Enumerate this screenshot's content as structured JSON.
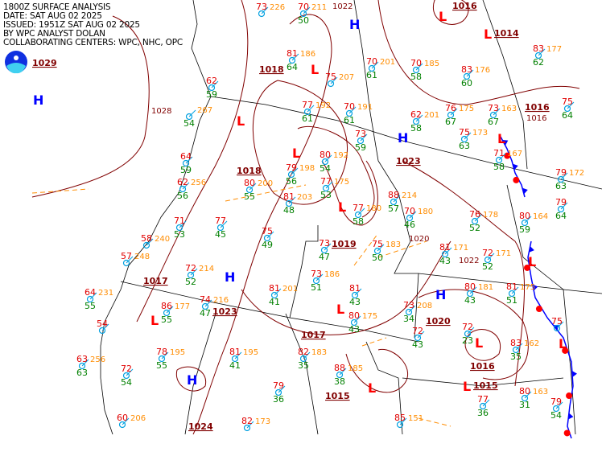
{
  "header": {
    "lines": [
      "1800Z SURFACE ANALYSIS",
      "DATE: SAT AUG 02 2025",
      "ISSUED: 1951Z SAT AUG 02 2025",
      "BY WPC ANALYST DOLAN",
      "COLLABORATING CENTERS: WPC, NHC, OPC"
    ]
  },
  "logo": {
    "text": "NOAA"
  },
  "colors": {
    "high": "#0000ff",
    "low": "#ff0000",
    "isobar": "#800000",
    "temp": "#e00000",
    "dewpoint": "#008000",
    "pressure": "#ff8c00",
    "cold_front": "#0000ff",
    "warm_front": "#ff0000",
    "trough": "#ff8c00",
    "border": "#000000"
  },
  "centers": [
    {
      "type": "H",
      "value": "1029"
    },
    {
      "type": "H",
      "value": ""
    },
    {
      "type": "L",
      "value": "1018"
    },
    {
      "type": "L",
      "value": "1018"
    },
    {
      "type": "L",
      "value": "1019"
    },
    {
      "type": "H",
      "value": "1023"
    },
    {
      "type": "H",
      "value": "1017"
    },
    {
      "type": "L",
      "value": "1023"
    },
    {
      "type": "H",
      "value": "1024"
    },
    {
      "type": "L",
      "value": "1017"
    },
    {
      "type": "L",
      "value": "1015"
    },
    {
      "type": "L",
      "value": "1016"
    },
    {
      "type": "H",
      "value": "1020"
    },
    {
      "type": "L",
      "value": "1016"
    },
    {
      "type": "L",
      "value": "1016"
    },
    {
      "type": "L",
      "value": "1014"
    },
    {
      "type": "L",
      "value": ""
    },
    {
      "type": "L",
      "value": ""
    },
    {
      "type": "L",
      "value": ""
    },
    {
      "type": "L",
      "value": "1015"
    }
  ],
  "isobar_labels": [
    "1028",
    "1022",
    "1016",
    "1022",
    "1020"
  ],
  "stations": [
    {
      "t": "73",
      "p": "226",
      "d": ""
    },
    {
      "t": "70",
      "p": "211",
      "d": "50"
    },
    {
      "t": "81",
      "p": "186",
      "d": "64"
    },
    {
      "t": "75",
      "p": "207",
      "d": ""
    },
    {
      "t": "70",
      "p": "201",
      "d": "61"
    },
    {
      "t": "70",
      "p": "185",
      "d": "58"
    },
    {
      "t": "83",
      "p": "176",
      "d": "60"
    },
    {
      "t": "83",
      "p": "177",
      "d": "62"
    },
    {
      "t": "77",
      "p": "192",
      "d": "61"
    },
    {
      "t": "70",
      "p": "191",
      "d": "61"
    },
    {
      "t": "62",
      "p": "201",
      "d": "58"
    },
    {
      "t": "76",
      "p": "175",
      "d": "67"
    },
    {
      "t": "73",
      "p": "163",
      "d": "67"
    },
    {
      "t": "75",
      "p": "",
      "d": "64"
    },
    {
      "t": "79",
      "p": "198",
      "d": "56"
    },
    {
      "t": "80",
      "p": "192",
      "d": "54"
    },
    {
      "t": "73",
      "p": "",
      "d": "59"
    },
    {
      "t": "75",
      "p": "173",
      "d": "63"
    },
    {
      "t": "71",
      "p": "167",
      "d": "58"
    },
    {
      "t": "79",
      "p": "172",
      "d": "63"
    },
    {
      "t": "80",
      "p": "200",
      "d": "55"
    },
    {
      "t": "77",
      "p": "175",
      "d": "53"
    },
    {
      "t": "81",
      "p": "203",
      "d": "48"
    },
    {
      "t": "77",
      "p": "180",
      "d": "58"
    },
    {
      "t": "88",
      "p": "214",
      "d": "57"
    },
    {
      "t": "76",
      "p": "178",
      "d": "52"
    },
    {
      "t": "80",
      "p": "164",
      "d": "59"
    },
    {
      "t": "79",
      "p": "",
      "d": "64"
    },
    {
      "t": "77",
      "p": "",
      "d": "45"
    },
    {
      "t": "75",
      "p": "",
      "d": "49"
    },
    {
      "t": "73",
      "p": "",
      "d": "47"
    },
    {
      "t": "75",
      "p": "183",
      "d": "50"
    },
    {
      "t": "70",
      "p": "180",
      "d": "46"
    },
    {
      "t": "81",
      "p": "171",
      "d": "43"
    },
    {
      "t": "72",
      "p": "171",
      "d": "52"
    },
    {
      "t": "72",
      "p": "214",
      "d": "52"
    },
    {
      "t": "73",
      "p": "186",
      "d": "51"
    },
    {
      "t": "81",
      "p": "201",
      "d": "41"
    },
    {
      "t": "81",
      "p": "",
      "d": "43"
    },
    {
      "t": "80",
      "p": "181",
      "d": "43"
    },
    {
      "t": "81",
      "p": "175",
      "d": "51"
    },
    {
      "t": "74",
      "p": "216",
      "d": "47"
    },
    {
      "t": "86",
      "p": "177",
      "d": "55"
    },
    {
      "t": "80",
      "p": "175",
      "d": "43"
    },
    {
      "t": "73",
      "p": "208",
      "d": "34"
    },
    {
      "t": "72",
      "p": "",
      "d": "23"
    },
    {
      "t": "83",
      "p": "162",
      "d": "35"
    },
    {
      "t": "75",
      "p": "",
      "d": ""
    },
    {
      "t": "72",
      "p": "",
      "d": "43"
    },
    {
      "t": "82",
      "p": "183",
      "d": "35"
    },
    {
      "t": "81",
      "p": "195",
      "d": "41"
    },
    {
      "t": "78",
      "p": "195",
      "d": "55"
    },
    {
      "t": "88",
      "p": "185",
      "d": "38"
    },
    {
      "t": "79",
      "p": "",
      "d": "36"
    },
    {
      "t": "80",
      "p": "163",
      "d": "31"
    },
    {
      "t": "77",
      "p": "",
      "d": "36"
    },
    {
      "t": "85",
      "p": "151",
      "d": ""
    },
    {
      "t": "82",
      "p": "173",
      "d": ""
    },
    {
      "t": "79",
      "p": "",
      "d": "54"
    },
    {
      "t": "64",
      "p": "231",
      "d": "55"
    },
    {
      "t": "54",
      "p": "",
      "d": ""
    },
    {
      "t": "63",
      "p": "256",
      "d": "63"
    },
    {
      "t": "60",
      "p": "206",
      "d": ""
    },
    {
      "t": "58",
      "p": "240",
      "d": ""
    },
    {
      "t": "57",
      "p": "248",
      "d": ""
    },
    {
      "t": "71",
      "p": "",
      "d": "53"
    },
    {
      "t": "62",
      "p": "256",
      "d": "56"
    },
    {
      "t": "64",
      "p": "",
      "d": "59"
    },
    {
      "t": "72",
      "p": "",
      "d": "54"
    },
    {
      "t": "62",
      "p": "",
      "d": "59"
    },
    {
      "t": "",
      "p": "267",
      "d": "54"
    }
  ]
}
